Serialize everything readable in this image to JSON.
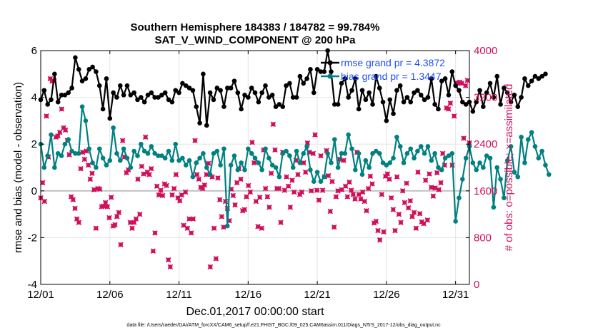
{
  "chart_data": {
    "type": "line",
    "title_line1": "Southern Hemisphere 184383 / 184782 = 99.784%",
    "title_line2": "SAT_V_WIND_COMPONENT @ 200 hPa",
    "xlabel": "Dec.01,2017 00:00:00 start",
    "ylabel_left": "rmse and bias (model - observation)",
    "ylabel_right": "# of obs: o=possible; ×=assimilated",
    "footer": "data file: /Users/raeder/DAI/ATM_forcXX/CAM6_setup/f.e21.FHIST_BGC.f09_025.CAM6assim.011/Diags_NTrS_2017-12/obs_diag_output.nc",
    "x_range": [
      1,
      32
    ],
    "ylim_left": [
      -4,
      6
    ],
    "ylim_right": [
      0,
      4000
    ],
    "x_ticks": [
      1,
      6,
      11,
      16,
      21,
      26,
      31
    ],
    "x_tick_labels": [
      "12/01",
      "12/06",
      "12/11",
      "12/16",
      "12/21",
      "12/26",
      "12/31"
    ],
    "y_ticks_left": [
      -4,
      -2,
      0,
      2,
      4,
      6
    ],
    "y_tick_labels_left": [
      "-4",
      "-2",
      "0",
      "2",
      "4",
      "6"
    ],
    "y_ticks_right": [
      0,
      800,
      1600,
      2400,
      3200,
      4000
    ],
    "y_tick_labels_right": [
      "0",
      "800",
      "1600",
      "2400",
      "3200",
      "4000"
    ],
    "x_start": 1.0,
    "x_step": 0.25,
    "legend": [
      {
        "name": "rmse grand pr = 4.3872",
        "color": "#000000"
      },
      {
        "name": "bias grand pr = 1.3447",
        "color": "#008080"
      }
    ],
    "colors": {
      "rmse": "#000000",
      "bias": "#008080",
      "obs": "#d0105a",
      "zero_line": "#c0c0c0"
    },
    "series": [
      {
        "name": "rmse",
        "values": [
          3.9,
          4.3,
          3.7,
          3.9,
          5.0,
          3.8,
          4.1,
          4.1,
          4.2,
          4.4,
          5.7,
          5.2,
          4.7,
          4.8,
          5.2,
          5.3,
          5.1,
          4.5,
          3.5,
          4.8,
          3.1,
          4.2,
          4.0,
          4.5,
          4.1,
          4.5,
          4.1,
          4.2,
          3.9,
          4.0,
          3.8,
          4.1,
          4.2,
          4.0,
          4.0,
          4.1,
          4.2,
          3.9,
          3.8,
          4.3,
          4.2,
          4.6,
          4.5,
          4.4,
          4.3,
          3.6,
          2.9,
          5.0,
          2.8,
          4.2,
          3.9,
          4.4,
          4.3,
          3.6,
          4.4,
          4.4,
          4.7,
          4.2,
          3.5,
          4.1,
          4.0,
          4.4,
          4.2,
          3.8,
          4.2,
          4.5,
          4.0,
          4.1,
          3.6,
          3.7,
          3.6,
          4.5,
          4.6,
          4.0,
          4.0,
          4.9,
          4.6,
          4.8,
          5.2,
          4.2,
          5.2,
          5.1,
          5.1,
          6.0,
          5.1,
          3.7,
          3.7,
          4.6,
          4.8,
          4.0,
          4.3,
          4.8,
          3.5,
          4.3,
          3.9,
          4.2,
          3.7,
          4.9,
          4.4,
          3.8,
          3.0,
          3.9,
          3.3,
          4.3,
          4.5,
          3.8,
          4.0,
          3.8,
          4.2,
          4.3,
          4.1,
          3.9,
          4.0,
          4.8,
          3.7,
          3.5,
          4.7,
          4.8,
          4.1,
          5.1,
          4.5,
          4.3,
          3.8,
          3.7,
          3.8,
          3.4,
          3.8,
          4.3,
          3.6,
          4.2,
          4.6,
          4.0,
          4.9,
          3.7,
          4.4,
          4.2,
          3.8,
          4.1,
          3.6,
          4.0,
          4.8,
          4.5,
          4.7,
          4.9,
          4.8,
          4.9,
          5.0
        ]
      },
      {
        "name": "bias",
        "values": [
          2.0,
          1.0,
          1.5,
          2.4,
          1.0,
          1.6,
          1.5,
          2.0,
          2.2,
          1.7,
          1.6,
          1.6,
          3.6,
          3.0,
          1.8,
          1.2,
          1.0,
          1.8,
          1.4,
          1.1,
          1.3,
          2.7,
          1.6,
          1.3,
          1.8,
          1.4,
          1.0,
          1.7,
          1.5,
          2.0,
          1.7,
          1.6,
          1.9,
          1.6,
          1.5,
          1.5,
          1.4,
          1.7,
          1.3,
          2.0,
          1.3,
          1.4,
          1.1,
          1.3,
          0.6,
          1.2,
          1.4,
          1.6,
          1.0,
          0.7,
          1.6,
          1.7,
          1.1,
          1.8,
          -1.5,
          1.1,
          1.5,
          0.9,
          1.2,
          0.9,
          1.8,
          1.6,
          1.4,
          1.2,
          0.9,
          1.8,
          1.4,
          1.1,
          1.0,
          0.6,
          1.6,
          1.7,
          1.5,
          1.0,
          1.7,
          1.2,
          1.6,
          1.9,
          0.9,
          0.4,
          0.8,
          0.4,
          0.6,
          1.6,
          1.2,
          2.2,
          1.0,
          1.6,
          1.6,
          2.4,
          1.8,
          0.9,
          1.6,
          0.7,
          1.3,
          1.0,
          1.6,
          1.7,
          1.6,
          1.2,
          1.1,
          1.2,
          1.4,
          2.3,
          1.9,
          1.2,
          1.6,
          1.8,
          1.4,
          1.7,
          1.9,
          1.6,
          1.9,
          1.3,
          1.6,
          1.0,
          0.9,
          1.4,
          1.5,
          1.6,
          -1.3,
          -0.3,
          0.5,
          1.4,
          1.9,
          1.2,
          0.9,
          1.2,
          1.0,
          1.5,
          1.4,
          -0.7,
          1.0,
          0.5,
          -0.3,
          1.3,
          1.9,
          0.8,
          0.6,
          2.3,
          1.2,
          2.2,
          2.5,
          1.9,
          1.4,
          1.7,
          1.1,
          0.7
        ]
      },
      {
        "name": "obs_possible",
        "values": [
          1480,
          1740,
          1420,
          2880,
          2180,
          3520,
          3480,
          3480,
          2520,
          2540,
          2600,
          3000,
          2680,
          2640,
          2460,
          2220,
          1500,
          1450,
          1300,
          1120,
          1060,
          1980,
          2260,
          2140,
          2280,
          2040,
          1800,
          1900,
          1620,
          960,
          1640,
          1630,
          1330,
          1340,
          1400,
          1330,
          1140,
          1490,
          1000,
          1020,
          1160,
          1230,
          680,
          2460,
          2180,
          1910,
          1960,
          1060,
          960,
          1060,
          1120,
          1800,
          1200,
          2020,
          1890,
          2520,
          1920,
          1880,
          1980,
          570,
          880,
          1680,
          1530,
          1610,
          1520,
          1720,
          1690,
          420,
          300,
          1530,
          1640,
          1880,
          1480,
          1430,
          1530,
          1010,
          1580,
          960,
          1120,
          880,
          1120,
          2460,
          1880,
          1800,
          1660,
          1640,
          1700,
          1880,
          2070,
          300,
          1840,
          960,
          440,
          1820,
          1450,
          1160,
          980,
          1420,
          1300,
          1090,
          1630,
          1520,
          1360,
          1740,
          1980,
          1800,
          1260,
          1280,
          1500,
          1690,
          1580,
          2430,
          2080,
          1420,
          990,
          1490,
          960,
          2300,
          1640,
          1500,
          1320,
          1900,
          2740,
          2300,
          1640,
          1640,
          1060,
          2260,
          1610,
          1840,
          1680,
          1320,
          1780,
          1580,
          2120,
          1880,
          1540,
          1580,
          2080,
          1920,
          2420,
          2260,
          1600,
          2240,
          2560,
          1610,
          1440,
          2200,
          1610,
          1840,
          2290,
          1860,
          1250,
          1760,
          980,
          1500,
          1600,
          2140,
          1620,
          2120,
          1680,
          1500,
          1750,
          1610,
          1540,
          1460,
          2260,
          1540,
          1460,
          1580,
          1420,
          1260,
          1640,
          1850,
          1720,
          1050,
          1080,
          920,
          760,
          1540,
          900,
          1850,
          1890,
          1800,
          1480,
          1280,
          920,
          1840,
          1200,
          1060,
          1600,
          1400,
          1730,
          1310,
          1430,
          1160,
          1230,
          960,
          1920,
          1210,
          1070,
          1040,
          1780,
          1100,
          1890,
          1660,
          1510,
          1650,
          1910,
          1620,
          1740,
          2240,
          2040,
          3020,
          3000,
          3100,
          2040,
          2880,
          3450,
          3440,
          3460,
          3440,
          2500,
          3400,
          3490,
          2420
        ]
      }
    ]
  }
}
